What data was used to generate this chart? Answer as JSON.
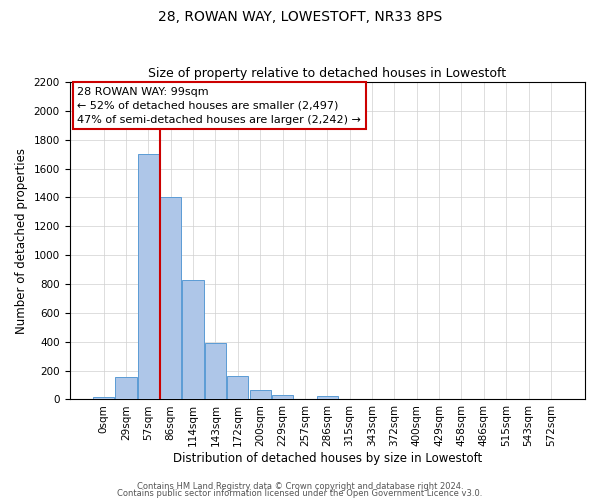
{
  "title": "28, ROWAN WAY, LOWESTOFT, NR33 8PS",
  "subtitle": "Size of property relative to detached houses in Lowestoft",
  "xlabel": "Distribution of detached houses by size in Lowestoft",
  "ylabel": "Number of detached properties",
  "bar_labels": [
    "0sqm",
    "29sqm",
    "57sqm",
    "86sqm",
    "114sqm",
    "143sqm",
    "172sqm",
    "200sqm",
    "229sqm",
    "257sqm",
    "286sqm",
    "315sqm",
    "343sqm",
    "372sqm",
    "400sqm",
    "429sqm",
    "458sqm",
    "486sqm",
    "515sqm",
    "543sqm",
    "572sqm"
  ],
  "bar_values": [
    20,
    155,
    1700,
    1400,
    830,
    390,
    160,
    65,
    30,
    0,
    25,
    0,
    0,
    0,
    0,
    0,
    0,
    0,
    0,
    0,
    0
  ],
  "bar_color": "#aec6e8",
  "bar_edge_color": "#5b9bd5",
  "vline_color": "#cc0000",
  "vline_pos": 2.5,
  "annotation_line1": "28 ROWAN WAY: 99sqm",
  "annotation_line2": "← 52% of detached houses are smaller (2,497)",
  "annotation_line3": "47% of semi-detached houses are larger (2,242) →",
  "ylim": [
    0,
    2200
  ],
  "yticks": [
    0,
    200,
    400,
    600,
    800,
    1000,
    1200,
    1400,
    1600,
    1800,
    2000,
    2200
  ],
  "background_color": "#ffffff",
  "grid_color": "#d0d0d0",
  "footer_line1": "Contains HM Land Registry data © Crown copyright and database right 2024.",
  "footer_line2": "Contains public sector information licensed under the Open Government Licence v3.0.",
  "title_fontsize": 10,
  "subtitle_fontsize": 9,
  "axis_label_fontsize": 8.5,
  "tick_fontsize": 7.5,
  "annotation_fontsize": 8,
  "footer_fontsize": 6
}
